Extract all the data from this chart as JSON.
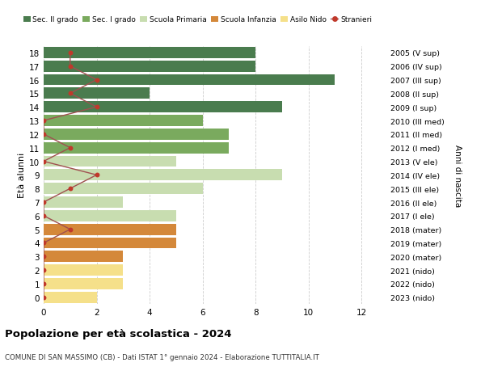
{
  "ages": [
    18,
    17,
    16,
    15,
    14,
    13,
    12,
    11,
    10,
    9,
    8,
    7,
    6,
    5,
    4,
    3,
    2,
    1,
    0
  ],
  "bar_values": [
    8,
    8,
    11,
    4,
    9,
    6,
    7,
    7,
    5,
    9,
    6,
    3,
    5,
    5,
    5,
    3,
    3,
    3,
    2
  ],
  "stranieri": [
    1,
    1,
    2,
    1,
    2,
    0,
    0,
    1,
    0,
    2,
    1,
    0,
    0,
    1,
    0,
    0,
    0,
    0,
    0
  ],
  "right_labels": [
    "2005 (V sup)",
    "2006 (IV sup)",
    "2007 (III sup)",
    "2008 (II sup)",
    "2009 (I sup)",
    "2010 (III med)",
    "2011 (II med)",
    "2012 (I med)",
    "2013 (V ele)",
    "2014 (IV ele)",
    "2015 (III ele)",
    "2016 (II ele)",
    "2017 (I ele)",
    "2018 (mater)",
    "2019 (mater)",
    "2020 (mater)",
    "2021 (nido)",
    "2022 (nido)",
    "2023 (nido)"
  ],
  "bar_colors": [
    "#4a7c4e",
    "#4a7c4e",
    "#4a7c4e",
    "#4a7c4e",
    "#4a7c4e",
    "#7aaa5e",
    "#7aaa5e",
    "#7aaa5e",
    "#c8ddb0",
    "#c8ddb0",
    "#c8ddb0",
    "#c8ddb0",
    "#c8ddb0",
    "#d4883a",
    "#d4883a",
    "#d4883a",
    "#f5e08a",
    "#f5e08a",
    "#f5e08a"
  ],
  "legend_labels": [
    "Sec. II grado",
    "Sec. I grado",
    "Scuola Primaria",
    "Scuola Infanzia",
    "Asilo Nido",
    "Stranieri"
  ],
  "legend_colors": [
    "#4a7c4e",
    "#7aaa5e",
    "#c8ddb0",
    "#d4883a",
    "#f5e08a",
    "#c0392b"
  ],
  "title": "Popolazione per à scolastica - 2024",
  "title_display": "Popolazione per età scolastica - 2024",
  "subtitle": "COMUNE DI SAN MASSIMO (CB) - Dati ISTAT 1° gennaio 2024 - Elaborazione TUTTITALIA.IT",
  "ylabel_left": "Età alunni",
  "ylabel_right": "Anni di nascita",
  "xlim": [
    0,
    13
  ],
  "ylim": [
    -0.5,
    18.5
  ],
  "bg_color": "#ffffff",
  "grid_color": "#cccccc",
  "stranieri_color": "#c0392b",
  "stranieri_line_color": "#a05050"
}
